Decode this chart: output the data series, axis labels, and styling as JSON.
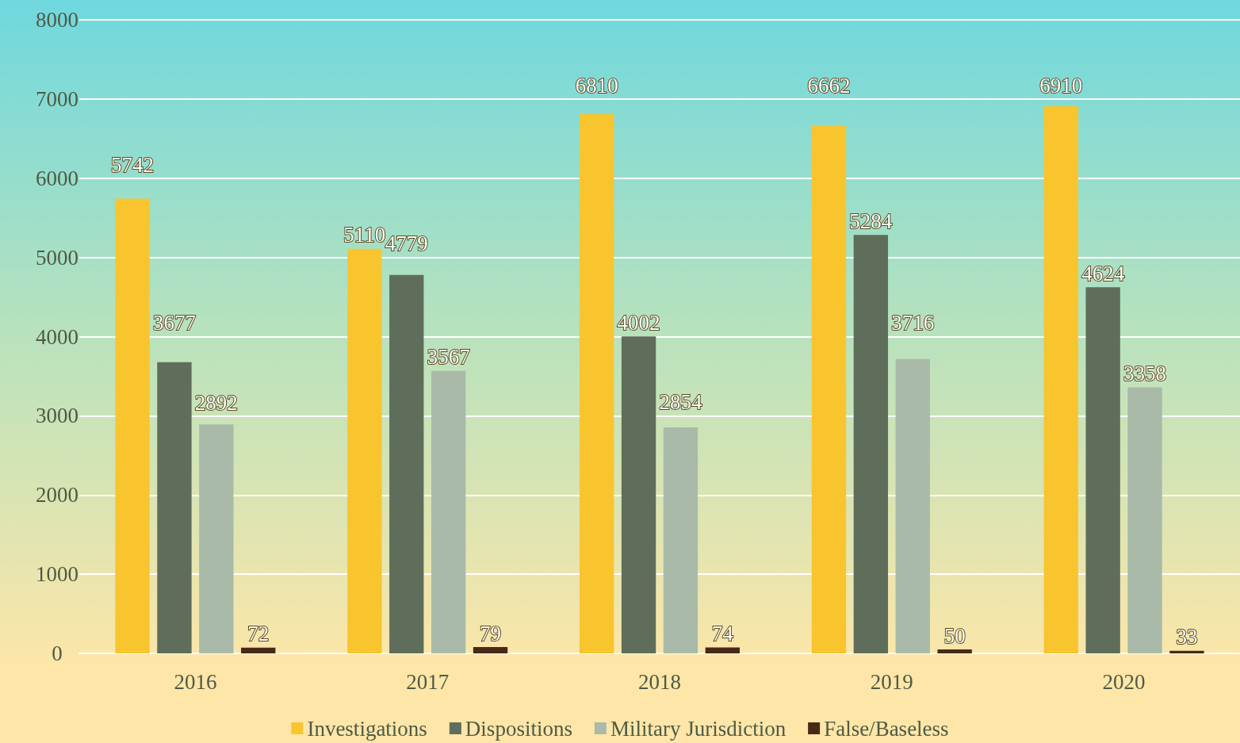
{
  "chart_data": {
    "type": "bar",
    "categories": [
      "2016",
      "2017",
      "2018",
      "2019",
      "2020"
    ],
    "series": [
      {
        "name": "Investigations",
        "color": "#f8c52f",
        "values": [
          5742,
          5110,
          6810,
          6662,
          6910
        ]
      },
      {
        "name": "Dispositions",
        "color": "#5f6e5a",
        "values": [
          3677,
          4779,
          4002,
          5284,
          4624
        ]
      },
      {
        "name": "Military Jurisdiction",
        "color": "#a9baa9",
        "values": [
          2892,
          3567,
          2854,
          3716,
          3358
        ]
      },
      {
        "name": "False/Baseless",
        "color": "#4a2818",
        "values": [
          72,
          79,
          74,
          50,
          33
        ]
      }
    ],
    "ylim": [
      0,
      8000
    ],
    "yticks": [
      0,
      1000,
      2000,
      3000,
      4000,
      5000,
      6000,
      7000,
      8000
    ],
    "grid": "y",
    "legend": "bottom",
    "data_labels": true
  }
}
